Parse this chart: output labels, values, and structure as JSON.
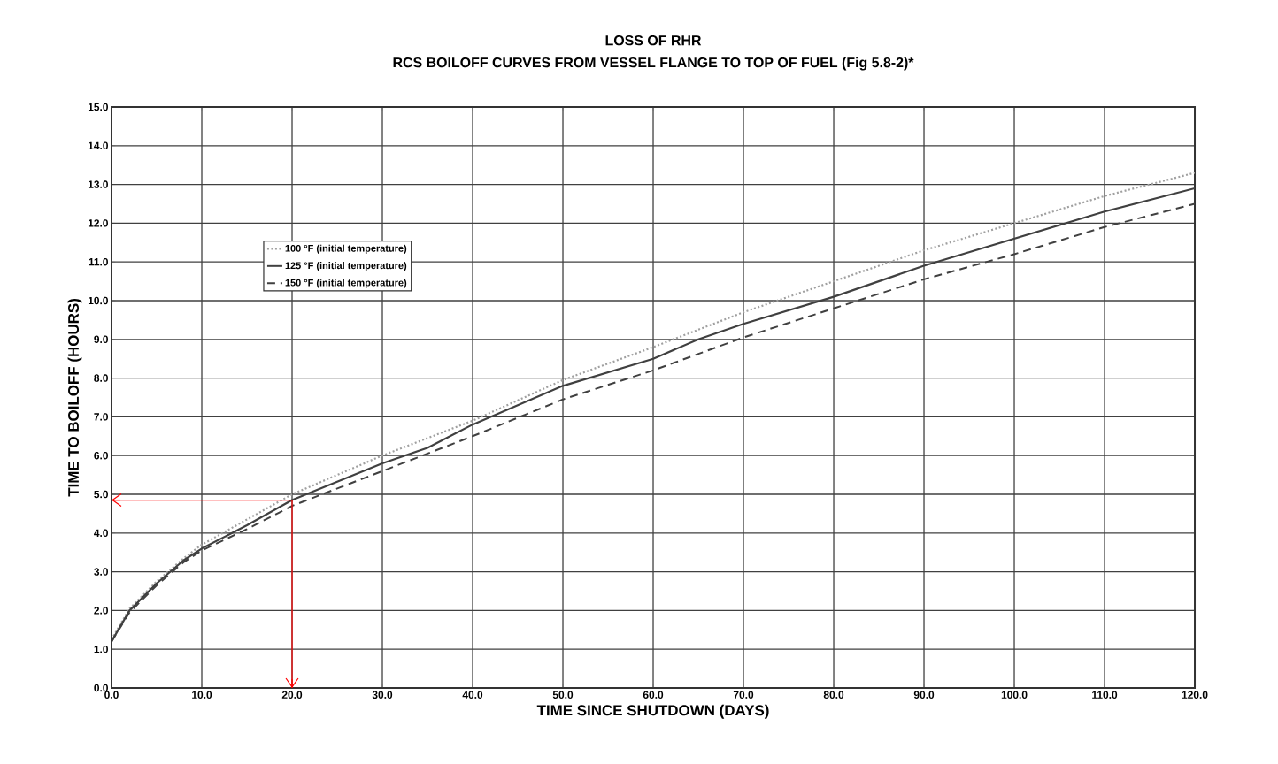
{
  "chart_data": {
    "type": "line",
    "title": "LOSS OF RHR",
    "subtitle": "RCS BOILOFF CURVES FROM VESSEL FLANGE TO TOP OF FUEL (Fig 5.8-2)*",
    "xlabel": "TIME SINCE SHUTDOWN (DAYS)",
    "ylabel": "TIME TO BOILOFF (HOURS)",
    "xlim": [
      0,
      120
    ],
    "ylim": [
      0,
      15
    ],
    "xticks": [
      {
        "value": 0,
        "label": "0.0"
      },
      {
        "value": 10,
        "label": "10.0"
      },
      {
        "value": 20,
        "label": "20.0"
      },
      {
        "value": 30,
        "label": "30.0"
      },
      {
        "value": 40,
        "label": "40.0"
      },
      {
        "value": 50,
        "label": "50.0"
      },
      {
        "value": 60,
        "label": "60.0"
      },
      {
        "value": 70,
        "label": "70.0"
      },
      {
        "value": 80,
        "label": "80.0"
      },
      {
        "value": 90,
        "label": "90.0"
      },
      {
        "value": 100,
        "label": "100.0"
      },
      {
        "value": 110,
        "label": "110.0"
      },
      {
        "value": 120,
        "label": "120.0"
      }
    ],
    "yticks": [
      {
        "value": 0,
        "label": "0.0"
      },
      {
        "value": 1,
        "label": "1.0"
      },
      {
        "value": 2,
        "label": "2.0"
      },
      {
        "value": 3,
        "label": "3.0"
      },
      {
        "value": 4,
        "label": "4.0"
      },
      {
        "value": 5,
        "label": "5.0"
      },
      {
        "value": 6,
        "label": "6.0"
      },
      {
        "value": 7,
        "label": "7.0"
      },
      {
        "value": 8,
        "label": "8.0"
      },
      {
        "value": 9,
        "label": "9.0"
      },
      {
        "value": 10,
        "label": "10.0"
      },
      {
        "value": 11,
        "label": "11.0"
      },
      {
        "value": 12,
        "label": "12.0"
      },
      {
        "value": 13,
        "label": "13.0"
      },
      {
        "value": 14,
        "label": "14.0"
      },
      {
        "value": 15,
        "label": "15.0"
      }
    ],
    "grid": true,
    "legend": "top left",
    "marker": "none",
    "series": [
      {
        "name": "100 °F (initial temperature)",
        "color": "#a0a0a0",
        "line_style": "dotted",
        "x": [
          0,
          2,
          5,
          8,
          10,
          15,
          20,
          30,
          40,
          50,
          60,
          70,
          80,
          90,
          100,
          110,
          120
        ],
        "values": [
          1.25,
          2.05,
          2.75,
          3.35,
          3.7,
          4.35,
          5.0,
          6.0,
          6.9,
          7.95,
          8.8,
          9.7,
          10.5,
          11.3,
          12.0,
          12.7,
          13.3
        ]
      },
      {
        "name": "125 °F (initial temperature)",
        "color": "#404040",
        "line_style": "solid",
        "x": [
          0,
          2,
          5,
          8,
          10,
          15,
          20,
          30,
          35,
          40,
          50,
          60,
          65,
          70,
          80,
          90,
          100,
          110,
          120
        ],
        "values": [
          1.2,
          2.0,
          2.7,
          3.3,
          3.6,
          4.2,
          4.85,
          5.8,
          6.2,
          6.8,
          7.8,
          8.5,
          9.0,
          9.4,
          10.1,
          10.9,
          11.6,
          12.3,
          12.9
        ]
      },
      {
        "name": "150 °F (initial temperature)",
        "color": "#404040",
        "line_style": "dashed",
        "x": [
          0,
          2,
          5,
          8,
          10,
          15,
          20,
          30,
          40,
          50,
          60,
          70,
          80,
          90,
          100,
          110,
          120
        ],
        "values": [
          1.2,
          1.95,
          2.65,
          3.25,
          3.55,
          4.1,
          4.7,
          5.6,
          6.5,
          7.45,
          8.2,
          9.05,
          9.8,
          10.55,
          11.2,
          11.9,
          12.5
        ]
      },
      {
        "color": "#ff0000",
        "line_style": "solid",
        "x": [
          0,
          20,
          20
        ],
        "values": [
          4.85,
          4.85,
          0
        ]
      }
    ]
  }
}
